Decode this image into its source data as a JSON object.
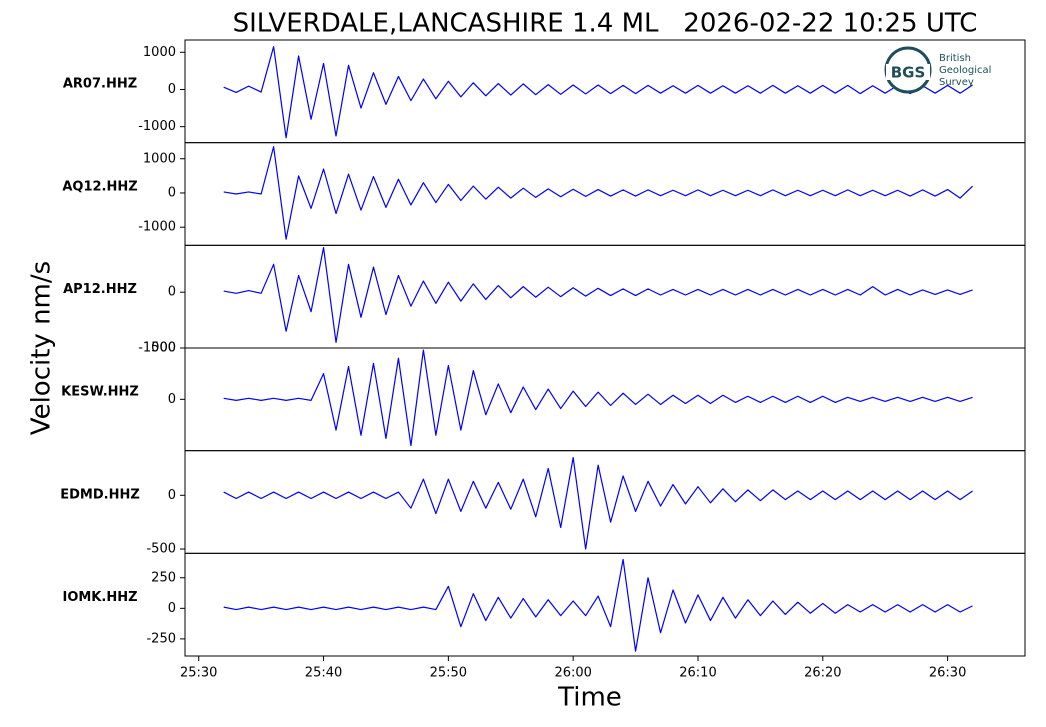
{
  "chart_data": [
    {
      "type": "line",
      "title": "SILVERDALE,LANCASHIRE 1.4 ML   2026-02-22 10:25 UTC",
      "ylabel": "Velocity nm/s",
      "name": "AR07.HHZ",
      "color": "#0000ff",
      "xlim": [
        28.9,
        96.2
      ],
      "ylim": [
        -1430,
        1330
      ],
      "yticks": [
        -1000,
        0,
        1000
      ],
      "x": [
        32,
        33,
        34,
        35,
        36,
        37,
        38,
        39,
        40,
        41,
        42,
        43,
        44,
        45,
        46,
        47,
        48,
        49,
        50,
        51,
        52,
        53,
        54,
        55,
        56,
        57,
        58,
        59,
        60,
        61,
        62,
        63,
        64,
        65,
        66,
        67,
        68,
        69,
        70,
        71,
        72,
        73,
        74,
        75,
        76,
        77,
        78,
        79,
        80,
        81,
        82,
        83,
        84,
        85,
        86,
        87,
        88,
        89,
        90,
        91,
        92
      ],
      "values": [
        60,
        -80,
        90,
        -70,
        1150,
        -1300,
        900,
        -800,
        700,
        -1250,
        650,
        -500,
        450,
        -400,
        350,
        -300,
        280,
        -250,
        220,
        -200,
        180,
        -170,
        160,
        -150,
        150,
        -140,
        130,
        -130,
        120,
        -120,
        120,
        -110,
        110,
        -110,
        110,
        -100,
        100,
        -100,
        110,
        -100,
        100,
        -100,
        100,
        -100,
        110,
        -100,
        100,
        -100,
        110,
        -100,
        110,
        -110,
        100,
        -100,
        110,
        -110,
        100,
        -100,
        110,
        -100,
        120
      ]
    },
    {
      "type": "line",
      "name": "AQ12.HHZ",
      "color": "#0000ff",
      "xlim": [
        28.9,
        96.2
      ],
      "ylim": [
        -1530,
        1470
      ],
      "yticks": [
        -1000,
        0,
        1000
      ],
      "x": [
        32,
        33,
        34,
        35,
        36,
        37,
        38,
        39,
        40,
        41,
        42,
        43,
        44,
        45,
        46,
        47,
        48,
        49,
        50,
        51,
        52,
        53,
        54,
        55,
        56,
        57,
        58,
        59,
        60,
        61,
        62,
        63,
        64,
        65,
        66,
        67,
        68,
        69,
        70,
        71,
        72,
        73,
        74,
        75,
        76,
        77,
        78,
        79,
        80,
        81,
        82,
        83,
        84,
        85,
        86,
        87,
        88,
        89,
        90,
        91,
        92
      ],
      "values": [
        30,
        -30,
        30,
        -30,
        1350,
        -1350,
        500,
        -450,
        700,
        -600,
        550,
        -500,
        480,
        -420,
        400,
        -350,
        300,
        -280,
        250,
        -220,
        200,
        -180,
        170,
        -150,
        140,
        -130,
        120,
        -110,
        110,
        -100,
        100,
        -90,
        90,
        -90,
        90,
        -80,
        80,
        -80,
        90,
        -80,
        80,
        -80,
        80,
        -80,
        90,
        -80,
        80,
        -80,
        80,
        -80,
        90,
        -80,
        80,
        -80,
        80,
        -90,
        90,
        -90,
        100,
        -150,
        200
      ]
    },
    {
      "type": "line",
      "name": "AP12.HHZ",
      "color": "#0000ff",
      "xlim": [
        28.9,
        96.2
      ],
      "ylim": [
        -1000,
        840
      ],
      "yticks": [
        -1000,
        0
      ],
      "x": [
        32,
        33,
        34,
        35,
        36,
        37,
        38,
        39,
        40,
        41,
        42,
        43,
        44,
        45,
        46,
        47,
        48,
        49,
        50,
        51,
        52,
        53,
        54,
        55,
        56,
        57,
        58,
        59,
        60,
        61,
        62,
        63,
        64,
        65,
        66,
        67,
        68,
        69,
        70,
        71,
        72,
        73,
        74,
        75,
        76,
        77,
        78,
        79,
        80,
        81,
        82,
        83,
        84,
        85,
        86,
        87,
        88,
        89,
        90,
        91,
        92
      ],
      "values": [
        20,
        -20,
        30,
        -20,
        500,
        -700,
        300,
        -350,
        800,
        -900,
        500,
        -450,
        450,
        -400,
        300,
        -250,
        200,
        -200,
        180,
        -160,
        150,
        -130,
        120,
        -100,
        100,
        -90,
        90,
        -80,
        80,
        -70,
        70,
        -60,
        60,
        -60,
        60,
        -50,
        50,
        -50,
        50,
        -50,
        50,
        -50,
        50,
        -50,
        50,
        -50,
        50,
        -50,
        50,
        -50,
        50,
        -50,
        100,
        -50,
        50,
        -50,
        40,
        -40,
        40,
        -40,
        40
      ]
    },
    {
      "type": "line",
      "name": "KESW.HHZ",
      "color": "#0000ff",
      "xlim": [
        28.9,
        96.2
      ],
      "ylim": [
        -500,
        500
      ],
      "yticks": [
        0,
        500
      ],
      "x": [
        32,
        33,
        34,
        35,
        36,
        37,
        38,
        39,
        40,
        41,
        42,
        43,
        44,
        45,
        46,
        47,
        48,
        49,
        50,
        51,
        52,
        53,
        54,
        55,
        56,
        57,
        58,
        59,
        60,
        61,
        62,
        63,
        64,
        65,
        66,
        67,
        68,
        69,
        70,
        71,
        72,
        73,
        74,
        75,
        76,
        77,
        78,
        79,
        80,
        81,
        82,
        83,
        84,
        85,
        86,
        87,
        88,
        89,
        90,
        91,
        92
      ],
      "values": [
        10,
        -10,
        10,
        -10,
        10,
        -10,
        10,
        -10,
        250,
        -300,
        320,
        -350,
        350,
        -380,
        400,
        -450,
        480,
        -350,
        330,
        -300,
        280,
        -150,
        150,
        -130,
        120,
        -100,
        100,
        -90,
        80,
        -70,
        70,
        -60,
        60,
        -50,
        50,
        -50,
        40,
        -40,
        40,
        -40,
        40,
        -30,
        30,
        -30,
        30,
        -30,
        30,
        -30,
        30,
        -30,
        20,
        -20,
        20,
        -20,
        20,
        -20,
        20,
        -20,
        20,
        -20,
        20
      ]
    },
    {
      "type": "line",
      "name": "EDMD.HHZ",
      "color": "#0000ff",
      "xlim": [
        28.9,
        96.2
      ],
      "ylim": [
        -540,
        415
      ],
      "yticks": [
        -500,
        0
      ],
      "x": [
        32,
        33,
        34,
        35,
        36,
        37,
        38,
        39,
        40,
        41,
        42,
        43,
        44,
        45,
        46,
        47,
        48,
        49,
        50,
        51,
        52,
        53,
        54,
        55,
        56,
        57,
        58,
        59,
        60,
        61,
        62,
        63,
        64,
        65,
        66,
        67,
        68,
        69,
        70,
        71,
        72,
        73,
        74,
        75,
        76,
        77,
        78,
        79,
        80,
        81,
        82,
        83,
        84,
        85,
        86,
        87,
        88,
        89,
        90,
        91,
        92
      ],
      "values": [
        30,
        -30,
        30,
        -30,
        30,
        -30,
        30,
        -30,
        30,
        -30,
        30,
        -30,
        30,
        -30,
        30,
        -120,
        150,
        -170,
        150,
        -150,
        130,
        -120,
        120,
        -130,
        150,
        -200,
        250,
        -300,
        350,
        -500,
        280,
        -250,
        180,
        -150,
        130,
        -100,
        100,
        -80,
        80,
        -70,
        60,
        -60,
        50,
        -50,
        50,
        -40,
        40,
        -40,
        40,
        -40,
        40,
        -40,
        40,
        -40,
        40,
        -40,
        40,
        -40,
        40,
        -40,
        40
      ]
    },
    {
      "type": "line",
      "name": "IOMK.HHZ",
      "xlabel": "Time",
      "color": "#0000ff",
      "xlim": [
        28.9,
        96.2
      ],
      "ylim": [
        -390,
        450
      ],
      "yticks": [
        -250,
        0,
        250
      ],
      "xticks": [
        {
          "value": 30,
          "label": "25:30"
        },
        {
          "value": 40,
          "label": "25:40"
        },
        {
          "value": 50,
          "label": "25:50"
        },
        {
          "value": 60,
          "label": "26:00"
        },
        {
          "value": 70,
          "label": "26:10"
        },
        {
          "value": 80,
          "label": "26:20"
        },
        {
          "value": 90,
          "label": "26:30"
        }
      ],
      "x": [
        32,
        33,
        34,
        35,
        36,
        37,
        38,
        39,
        40,
        41,
        42,
        43,
        44,
        45,
        46,
        47,
        48,
        49,
        50,
        51,
        52,
        53,
        54,
        55,
        56,
        57,
        58,
        59,
        60,
        61,
        62,
        63,
        64,
        65,
        66,
        67,
        68,
        69,
        70,
        71,
        72,
        73,
        74,
        75,
        76,
        77,
        78,
        79,
        80,
        81,
        82,
        83,
        84,
        85,
        86,
        87,
        88,
        89,
        90,
        91,
        92
      ],
      "values": [
        10,
        -10,
        10,
        -10,
        10,
        -10,
        10,
        -10,
        10,
        -10,
        10,
        -10,
        10,
        -10,
        10,
        -10,
        10,
        -10,
        180,
        -150,
        120,
        -100,
        90,
        -80,
        80,
        -70,
        70,
        -60,
        60,
        -60,
        100,
        -150,
        400,
        -350,
        250,
        -200,
        150,
        -120,
        110,
        -100,
        90,
        -80,
        70,
        -60,
        60,
        -50,
        50,
        -40,
        40,
        -40,
        30,
        -30,
        30,
        -30,
        30,
        -30,
        30,
        -30,
        30,
        -30,
        20
      ]
    }
  ],
  "logo": {
    "abbr": "BGS",
    "lines": [
      "British",
      "Geological",
      "Survey"
    ]
  }
}
